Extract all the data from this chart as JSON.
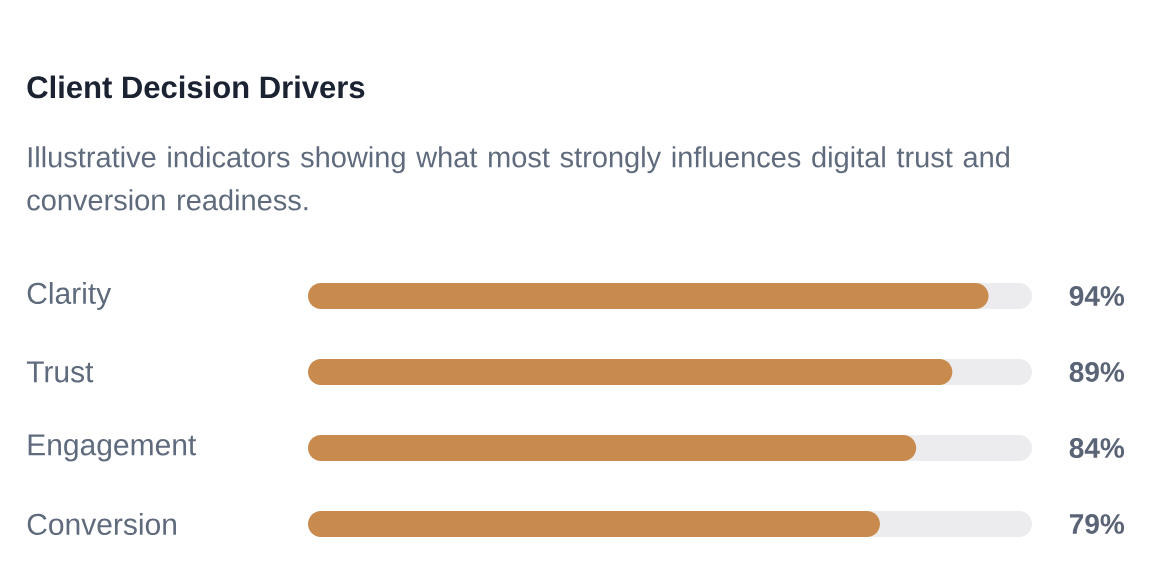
{
  "chart_data": {
    "type": "bar",
    "orientation": "horizontal",
    "title": "Client Decision Drivers",
    "subtitle": "Illustrative indicators showing what most strongly influences digital trust and conversion readiness.",
    "categories": [
      "Clarity",
      "Trust",
      "Engagement",
      "Conversion"
    ],
    "values": [
      94,
      89,
      84,
      79
    ],
    "value_labels": [
      "94%",
      "89%",
      "84%",
      "79%"
    ],
    "color": "#c98a4e",
    "xlim": [
      0,
      100
    ]
  }
}
